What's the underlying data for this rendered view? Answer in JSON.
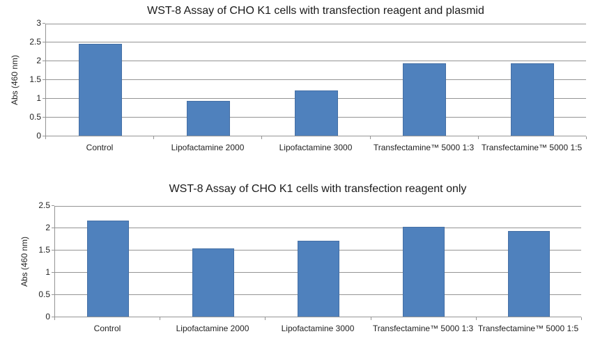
{
  "page": {
    "background": "#FFFFFF"
  },
  "colors": {
    "bar_fill": "#4F81BD",
    "bar_border": "#446FA5",
    "gridline": "#949494",
    "axis": "#949494",
    "text": "#1F1F1F"
  },
  "chart_data": [
    {
      "type": "bar",
      "title": "WST-8 Assay of CHO K1 cells with transfection reagent and plasmid",
      "xlabel": "",
      "ylabel": "Abs (460 nm)",
      "categories": [
        "Control",
        "Lipofactamine 2000",
        "Lipofactamine 3000",
        "Transfectamine™ 5000 1:3",
        "Transfectamine™ 5000 1:5"
      ],
      "values": [
        2.45,
        0.93,
        1.2,
        1.92,
        1.92
      ],
      "ylim": [
        0,
        3
      ],
      "ytick_step": 0.5,
      "ytick_labels": [
        "0",
        "0.5",
        "1",
        "1.5",
        "2",
        "2.5",
        "3"
      ],
      "grid": true,
      "legend": false,
      "bar_color": "#4F81BD"
    },
    {
      "type": "bar",
      "title": "WST-8 Assay of CHO K1 cells with transfection reagent only",
      "xlabel": "",
      "ylabel": "Abs (460 nm)",
      "categories": [
        "Control",
        "Lipofactamine 2000",
        "Lipofactamine 3000",
        "Transfectamine™ 5000 1:3",
        "Transfectamine™ 5000 1:5"
      ],
      "values": [
        2.15,
        1.53,
        1.7,
        2.02,
        1.92
      ],
      "ylim": [
        0,
        2.5
      ],
      "ytick_step": 0.5,
      "ytick_labels": [
        "0",
        "0.5",
        "1",
        "1.5",
        "2",
        "2.5"
      ],
      "grid": true,
      "legend": false,
      "bar_color": "#4F81BD"
    }
  ]
}
